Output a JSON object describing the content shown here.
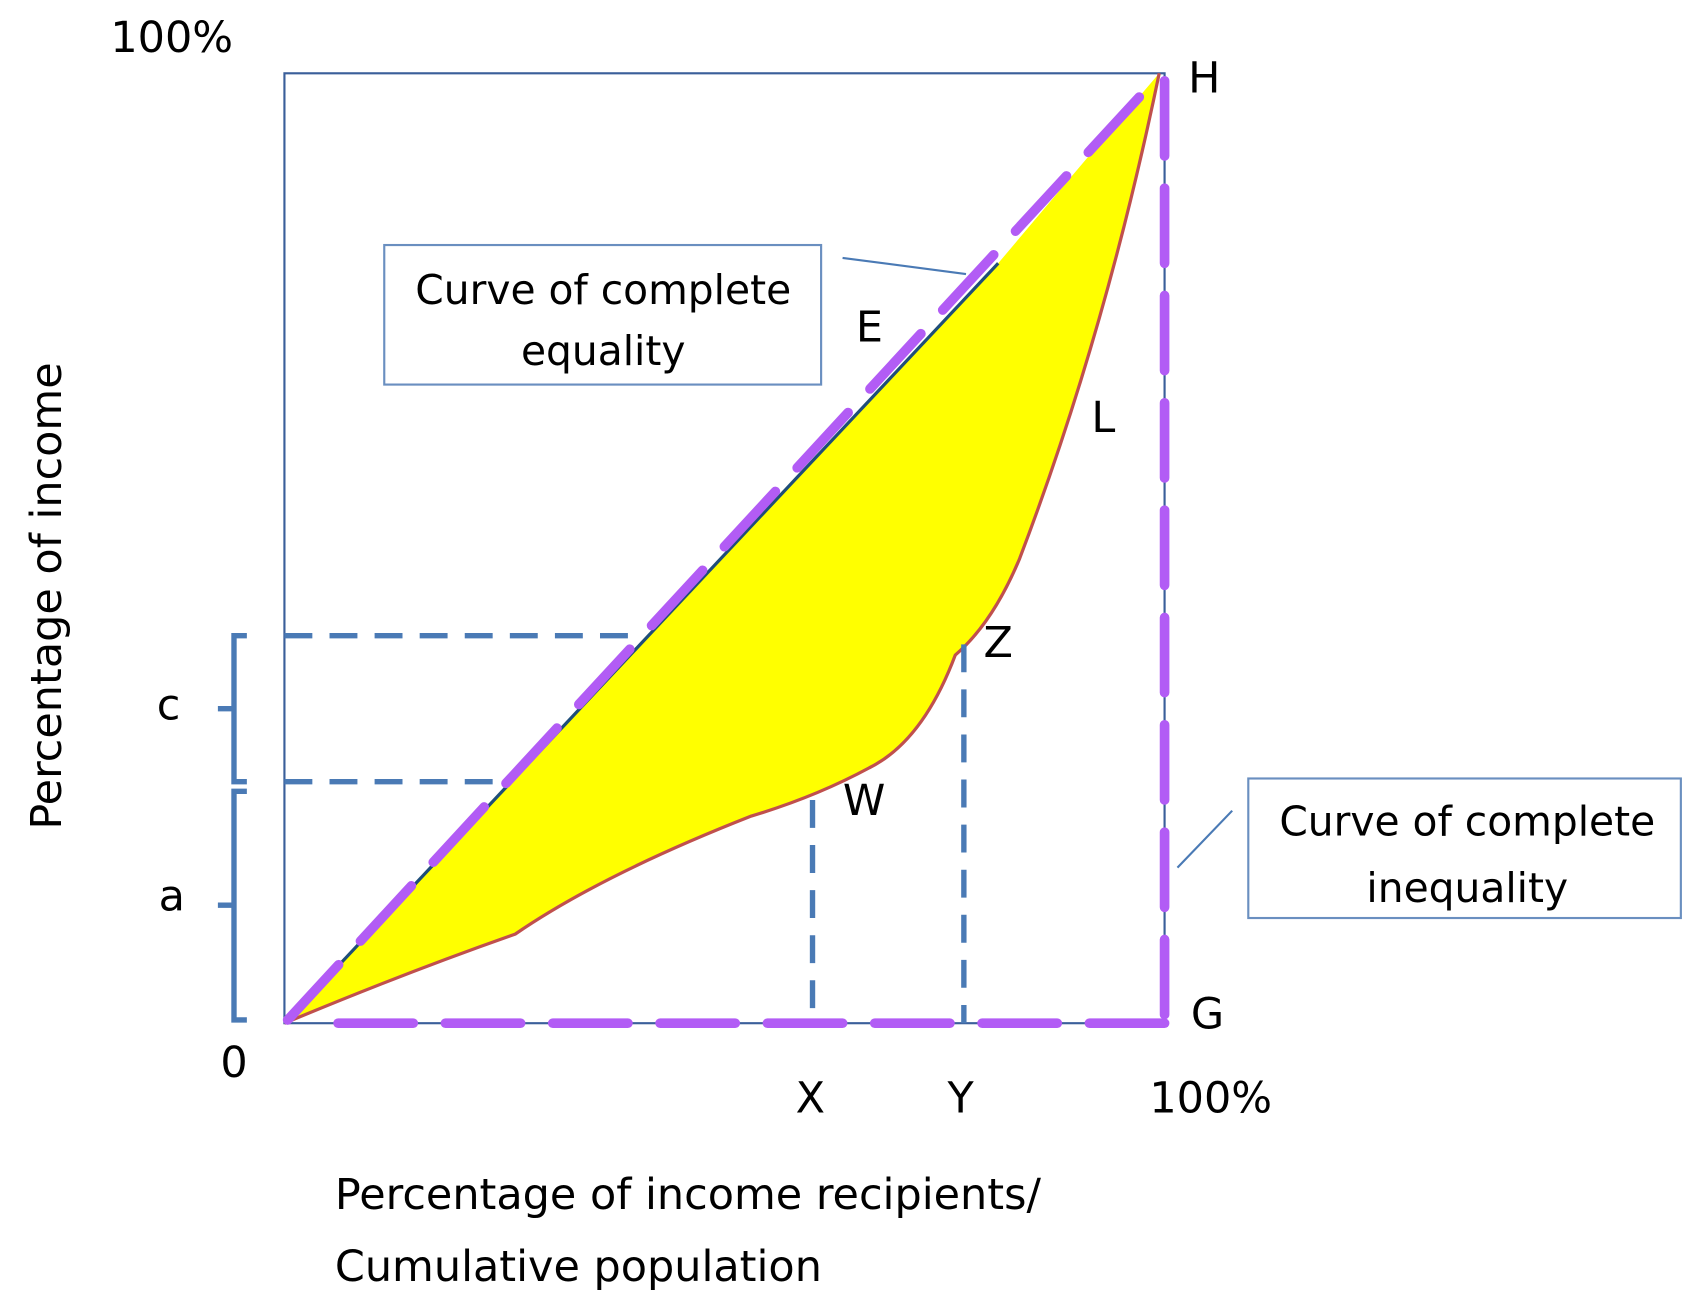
{
  "axes": {
    "y_top_label": "100%",
    "origin_label": "0",
    "x_right_label": "100%",
    "y_title": "Percentage of income",
    "x_title": [
      "Percentage of income recipients/",
      "Cumulative population"
    ]
  },
  "points": {
    "H": "H",
    "G": "G",
    "E": "E",
    "L": "L",
    "Z": "Z",
    "W": "W",
    "X": "X",
    "Y": "Y",
    "c": "c",
    "a": "a"
  },
  "callouts": {
    "equality": [
      "Curve of complete",
      "equality"
    ],
    "inequality": [
      "Curve of complete",
      "inequality"
    ]
  }
}
